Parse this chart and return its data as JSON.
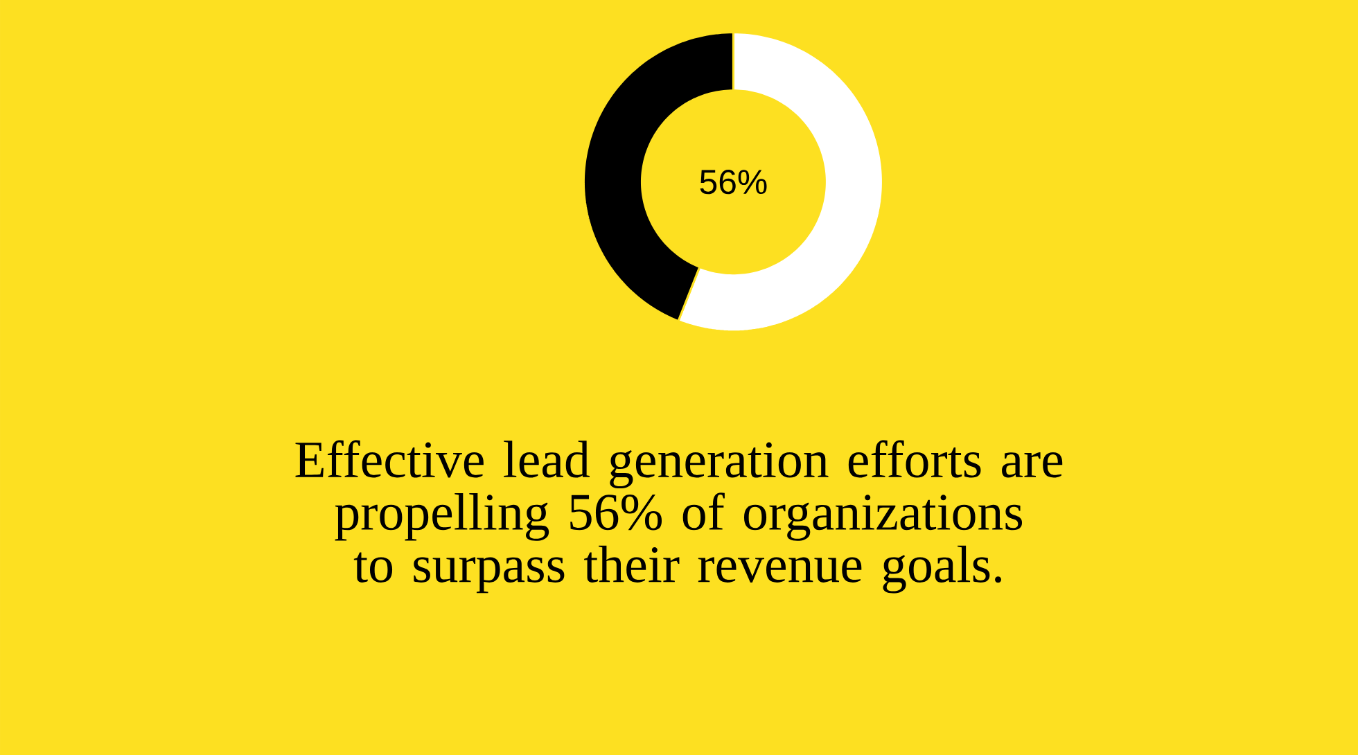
{
  "chart_data": {
    "type": "donut",
    "title": "Effective lead generation efforts are propelling 56% of organizations to surpass their revenue goals.",
    "categories": [
      null,
      null
    ],
    "values": [
      56,
      44
    ],
    "colors": [
      "#ffffff",
      "#000000"
    ],
    "value_labels": [
      "56%",
      null
    ]
  }
}
